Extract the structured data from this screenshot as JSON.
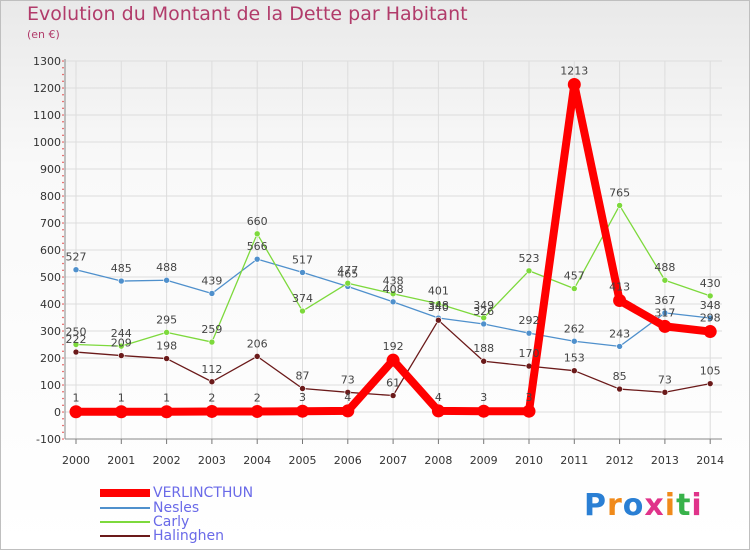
{
  "title": "Evolution du Montant de la Dette par Habitant",
  "unit_label": "(en €)",
  "logo_text": "Proxiti",
  "chart_data": {
    "type": "line",
    "title": "Evolution du Montant de la Dette par Habitant",
    "ylabel": "(en €)",
    "x": [
      "2000",
      "2001",
      "2002",
      "2003",
      "2004",
      "2005",
      "2006",
      "2007",
      "2008",
      "2009",
      "2010",
      "2011",
      "2012",
      "2013",
      "2014"
    ],
    "ylim": [
      -100,
      1300
    ],
    "yticks": [
      -100,
      0,
      100,
      200,
      300,
      400,
      500,
      600,
      700,
      800,
      900,
      1000,
      1100,
      1200,
      1300
    ],
    "grid": true,
    "legend_position": "bottom-left",
    "series": [
      {
        "name": "VERLINCTHUN",
        "color": "#ff0000",
        "values": [
          1,
          1,
          1,
          2,
          2,
          3,
          4,
          192,
          4,
          3,
          3,
          1213,
          413,
          317,
          298
        ],
        "labels": [
          "1",
          "1",
          "1",
          "2",
          "2",
          "3",
          "4",
          "192",
          "4",
          "3",
          "3",
          "1213",
          "413",
          "317",
          "298"
        ]
      },
      {
        "name": "Nesles",
        "color": "#4f90cc",
        "values": [
          527,
          485,
          488,
          439,
          566,
          517,
          465,
          408,
          348,
          326,
          292,
          262,
          243,
          367,
          348
        ],
        "labels": [
          "527",
          "485",
          "488",
          "439",
          "566",
          "517",
          "465",
          "408",
          "348",
          "326",
          "292",
          "262",
          "243",
          "367",
          "348"
        ]
      },
      {
        "name": "Carly",
        "color": "#7dd93c",
        "values": [
          250,
          244,
          295,
          259,
          660,
          374,
          477,
          438,
          401,
          349,
          523,
          457,
          765,
          488,
          430
        ],
        "labels": [
          "250",
          "244",
          "295",
          "259",
          "660",
          "374",
          "477",
          "438",
          "401",
          "349",
          "523",
          "457",
          "765",
          "488",
          "430"
        ]
      },
      {
        "name": "Halinghen",
        "color": "#6b1a1a",
        "values": [
          222,
          209,
          198,
          112,
          206,
          87,
          73,
          61,
          340,
          188,
          170,
          153,
          85,
          73,
          105
        ],
        "labels": [
          "222",
          "209",
          "198",
          "112",
          "206",
          "87",
          "73",
          "61",
          "340",
          "188",
          "170",
          "153",
          "85",
          "73",
          "105"
        ]
      }
    ]
  }
}
